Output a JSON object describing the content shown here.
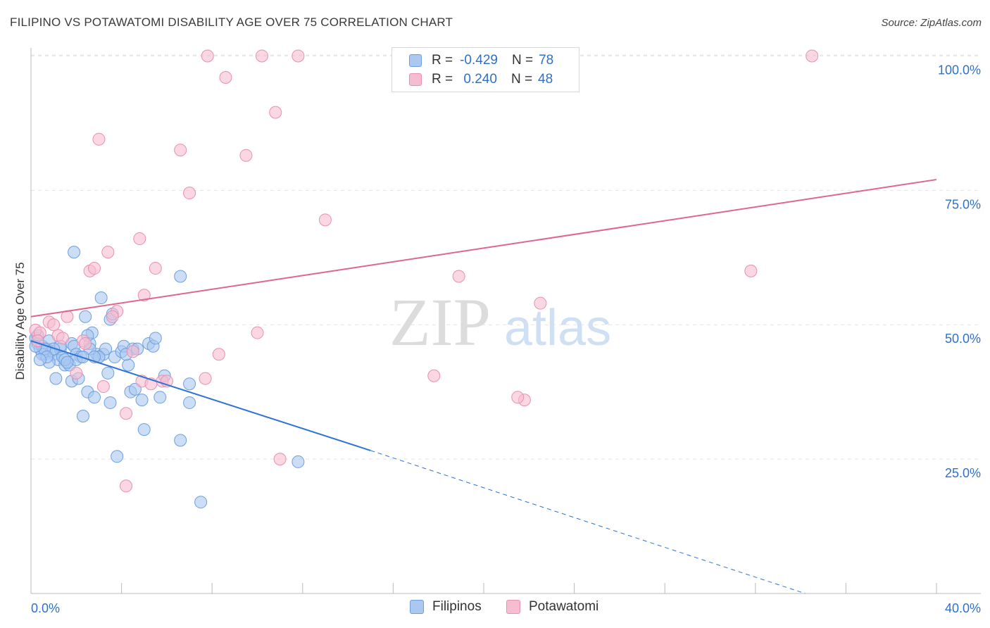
{
  "title": "FILIPINO VS POTAWATOMI DISABILITY AGE OVER 75 CORRELATION CHART",
  "source": "Source: ZipAtlas.com",
  "watermark": {
    "zip": "ZIP",
    "atlas": "atlas"
  },
  "legend": {
    "rows": [
      {
        "r_label": "R = ",
        "r_value": "-0.429",
        "n_label": "N = ",
        "n_value": "78"
      },
      {
        "r_label": "R = ",
        "r_value": " 0.240",
        "n_label": "N = ",
        "n_value": "48"
      }
    ]
  },
  "bottom_legend": [
    "Filipinos",
    "Potawatomi"
  ],
  "colors": {
    "filipinos_fill": "#aac8f0",
    "filipinos_stroke": "#6d9fe0",
    "filipinos_line": "#2f73d4",
    "potawatomi_fill": "#f6bcd0",
    "potawatomi_stroke": "#e890ae",
    "potawatomi_line": "#e0668e",
    "tick_label": "#3070c8",
    "grid": "#e3e3e3"
  },
  "chart_data": {
    "type": "scatter",
    "title": "FILIPINO VS POTAWATOMI DISABILITY AGE OVER 75 CORRELATION CHART",
    "xlabel": "",
    "ylabel": "Disability Age Over 75",
    "xlim": [
      0,
      40
    ],
    "ylim": [
      0,
      101.5
    ],
    "x_tick_labels": [
      "0.0%",
      "40.0%"
    ],
    "y_ticks": [
      25,
      50,
      75,
      100
    ],
    "y_tick_labels": [
      "25.0%",
      "50.0%",
      "75.0%",
      "100.0%"
    ],
    "grid": true,
    "series": [
      {
        "name": "Filipinos",
        "R": -0.429,
        "N": 78,
        "trend": {
          "x_start": 0,
          "y_start": 47.0,
          "x_solid_end": 15.0,
          "y_solid_end": 26.6,
          "x_end": 34.2,
          "y_end": 0
        },
        "points": [
          [
            0.2,
            47.5
          ],
          [
            0.3,
            46.5
          ],
          [
            0.4,
            45.5
          ],
          [
            0.5,
            46.0
          ],
          [
            0.6,
            44.5
          ],
          [
            0.7,
            45.5
          ],
          [
            0.8,
            47.0
          ],
          [
            0.9,
            45.0
          ],
          [
            1.0,
            44.5
          ],
          [
            1.1,
            40.0
          ],
          [
            1.2,
            43.5
          ],
          [
            1.3,
            45.5
          ],
          [
            1.4,
            44.0
          ],
          [
            1.5,
            42.5
          ],
          [
            1.6,
            43.0
          ],
          [
            1.7,
            42.5
          ],
          [
            1.8,
            46.5
          ],
          [
            1.9,
            46.0
          ],
          [
            2.0,
            44.5
          ],
          [
            1.8,
            39.5
          ],
          [
            2.1,
            40.0
          ],
          [
            2.2,
            44.0
          ],
          [
            2.3,
            33.0
          ],
          [
            2.4,
            51.5
          ],
          [
            2.5,
            37.5
          ],
          [
            2.6,
            46.5
          ],
          [
            2.7,
            48.5
          ],
          [
            2.8,
            36.5
          ],
          [
            2.9,
            44.5
          ],
          [
            3.0,
            44.0
          ],
          [
            3.1,
            55.0
          ],
          [
            3.2,
            44.5
          ],
          [
            3.3,
            45.5
          ],
          [
            3.4,
            41.0
          ],
          [
            3.5,
            51.0
          ],
          [
            3.6,
            52.0
          ],
          [
            3.7,
            44.0
          ],
          [
            3.8,
            25.5
          ],
          [
            4.0,
            45.0
          ],
          [
            4.1,
            46.0
          ],
          [
            4.3,
            42.5
          ],
          [
            4.4,
            37.5
          ],
          [
            4.5,
            45.5
          ],
          [
            4.7,
            45.5
          ],
          [
            4.9,
            36.0
          ],
          [
            5.0,
            30.5
          ],
          [
            5.2,
            46.5
          ],
          [
            5.4,
            46.0
          ],
          [
            5.5,
            47.5
          ],
          [
            5.7,
            36.5
          ],
          [
            5.9,
            40.5
          ],
          [
            6.6,
            59.0
          ],
          [
            6.6,
            28.5
          ],
          [
            7.0,
            39.0
          ],
          [
            7.0,
            35.5
          ],
          [
            7.5,
            17.0
          ],
          [
            11.8,
            24.5
          ],
          [
            1.9,
            63.5
          ],
          [
            2.5,
            48.0
          ],
          [
            3.5,
            35.5
          ],
          [
            0.5,
            44.5
          ],
          [
            0.8,
            43.0
          ],
          [
            1.3,
            46.0
          ],
          [
            1.0,
            45.5
          ],
          [
            2.0,
            43.5
          ],
          [
            0.3,
            48.0
          ],
          [
            0.6,
            45.5
          ],
          [
            1.5,
            43.5
          ],
          [
            0.2,
            46.0
          ],
          [
            0.7,
            44.0
          ],
          [
            3.0,
            44.0
          ],
          [
            4.2,
            44.5
          ],
          [
            2.6,
            45.5
          ],
          [
            1.6,
            43.0
          ],
          [
            2.3,
            44.0
          ],
          [
            0.4,
            43.5
          ],
          [
            4.6,
            38.0
          ],
          [
            2.8,
            44.0
          ]
        ]
      },
      {
        "name": "Potawatomi",
        "R": 0.24,
        "N": 48,
        "trend": {
          "x_start": 0,
          "y_start": 51.5,
          "x_end": 40,
          "y_end": 77.0
        },
        "points": [
          [
            7.8,
            100
          ],
          [
            10.2,
            100
          ],
          [
            11.8,
            100
          ],
          [
            34.5,
            100
          ],
          [
            8.6,
            96
          ],
          [
            10.8,
            89.5
          ],
          [
            3.0,
            84.5
          ],
          [
            6.6,
            82.5
          ],
          [
            9.5,
            81.5
          ],
          [
            7.0,
            74.5
          ],
          [
            13.0,
            69.5
          ],
          [
            4.8,
            66.0
          ],
          [
            3.4,
            63.5
          ],
          [
            2.6,
            60.0
          ],
          [
            2.8,
            60.5
          ],
          [
            5.5,
            60.5
          ],
          [
            18.9,
            59.0
          ],
          [
            31.8,
            60.0
          ],
          [
            5.0,
            55.5
          ],
          [
            22.5,
            54.0
          ],
          [
            3.8,
            52.5
          ],
          [
            3.6,
            51.5
          ],
          [
            1.6,
            51.5
          ],
          [
            0.8,
            50.5
          ],
          [
            1.0,
            50.0
          ],
          [
            0.2,
            49.0
          ],
          [
            0.4,
            48.5
          ],
          [
            10.0,
            48.5
          ],
          [
            1.2,
            48.0
          ],
          [
            1.4,
            47.5
          ],
          [
            2.3,
            47.0
          ],
          [
            2.4,
            46.5
          ],
          [
            4.5,
            45.0
          ],
          [
            8.3,
            44.5
          ],
          [
            0.3,
            47.0
          ],
          [
            17.8,
            40.5
          ],
          [
            7.7,
            40.0
          ],
          [
            4.9,
            39.5
          ],
          [
            5.8,
            39.5
          ],
          [
            5.3,
            39.0
          ],
          [
            6.0,
            39.5
          ],
          [
            3.2,
            38.5
          ],
          [
            21.8,
            36.0
          ],
          [
            21.5,
            36.5
          ],
          [
            4.2,
            33.5
          ],
          [
            11.0,
            25.0
          ],
          [
            4.2,
            20.0
          ],
          [
            2.0,
            41.0
          ]
        ]
      }
    ]
  }
}
